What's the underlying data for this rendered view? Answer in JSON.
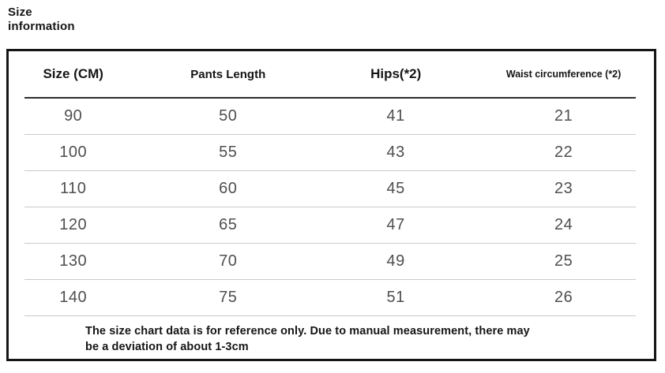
{
  "page": {
    "title_lines": [
      "Size",
      "information"
    ]
  },
  "chart_data": {
    "type": "table",
    "title": "Size information",
    "columns": [
      "Size (CM)",
      "Pants Length",
      "Hips(*2)",
      "Waist circumference (*2)"
    ],
    "rows": [
      [
        "90",
        "50",
        "41",
        "21"
      ],
      [
        "100",
        "55",
        "43",
        "22"
      ],
      [
        "110",
        "60",
        "45",
        "23"
      ],
      [
        "120",
        "65",
        "47",
        "24"
      ],
      [
        "130",
        "70",
        "49",
        "25"
      ],
      [
        "140",
        "75",
        "51",
        "26"
      ]
    ],
    "note_lines": [
      "The size chart data is for reference only. Due to manual measurement, there may",
      "be a deviation of about 1-3cm"
    ]
  },
  "colors": {
    "background": "#ffffff",
    "border": "#151515",
    "header_text": "#151515",
    "data_text": "#4f4f4f",
    "row_divider": "#c9c9c9",
    "header_divider": "#2e2e2e"
  }
}
